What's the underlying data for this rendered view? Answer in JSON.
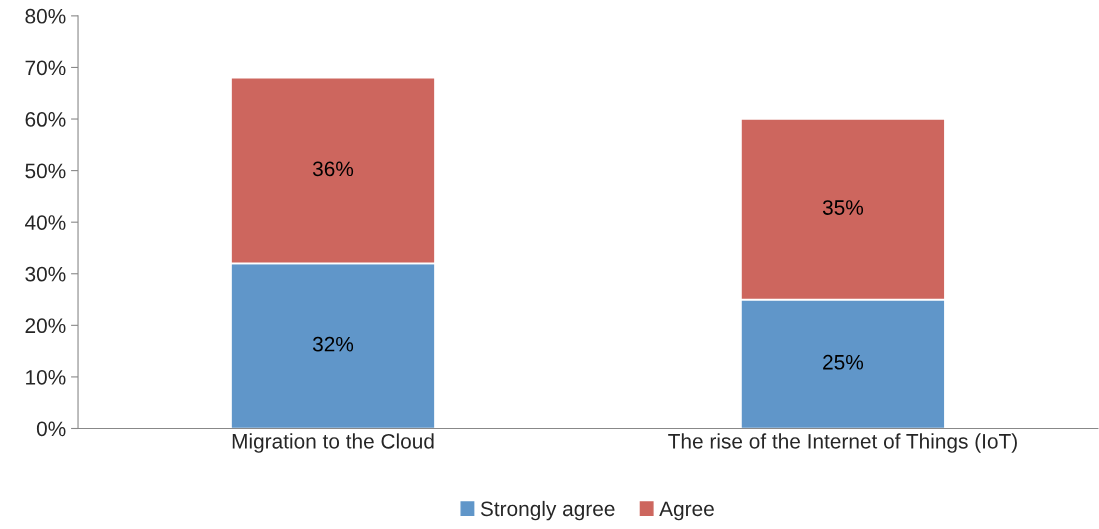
{
  "chart_data": {
    "type": "bar",
    "stacked": true,
    "categories": [
      "Migration to the Cloud",
      "The rise of the Internet of Things (IoT)"
    ],
    "series": [
      {
        "name": "Strongly agree",
        "color": "#6096c9",
        "values": [
          32,
          25
        ],
        "value_labels": [
          "32%",
          "25%"
        ]
      },
      {
        "name": "Agree",
        "color": "#cd665e",
        "values": [
          36,
          35
        ],
        "value_labels": [
          "36%",
          "35%"
        ]
      }
    ],
    "ylim": [
      0,
      80
    ],
    "yticks": [
      {
        "value": 0,
        "label": "0%"
      },
      {
        "value": 10,
        "label": "10%"
      },
      {
        "value": 20,
        "label": "20%"
      },
      {
        "value": 30,
        "label": "30%"
      },
      {
        "value": 40,
        "label": "40%"
      },
      {
        "value": 50,
        "label": "50%"
      },
      {
        "value": 60,
        "label": "60%"
      },
      {
        "value": 70,
        "label": "70%"
      },
      {
        "value": 80,
        "label": "80%"
      }
    ],
    "grid": false,
    "legend": "bottom"
  }
}
